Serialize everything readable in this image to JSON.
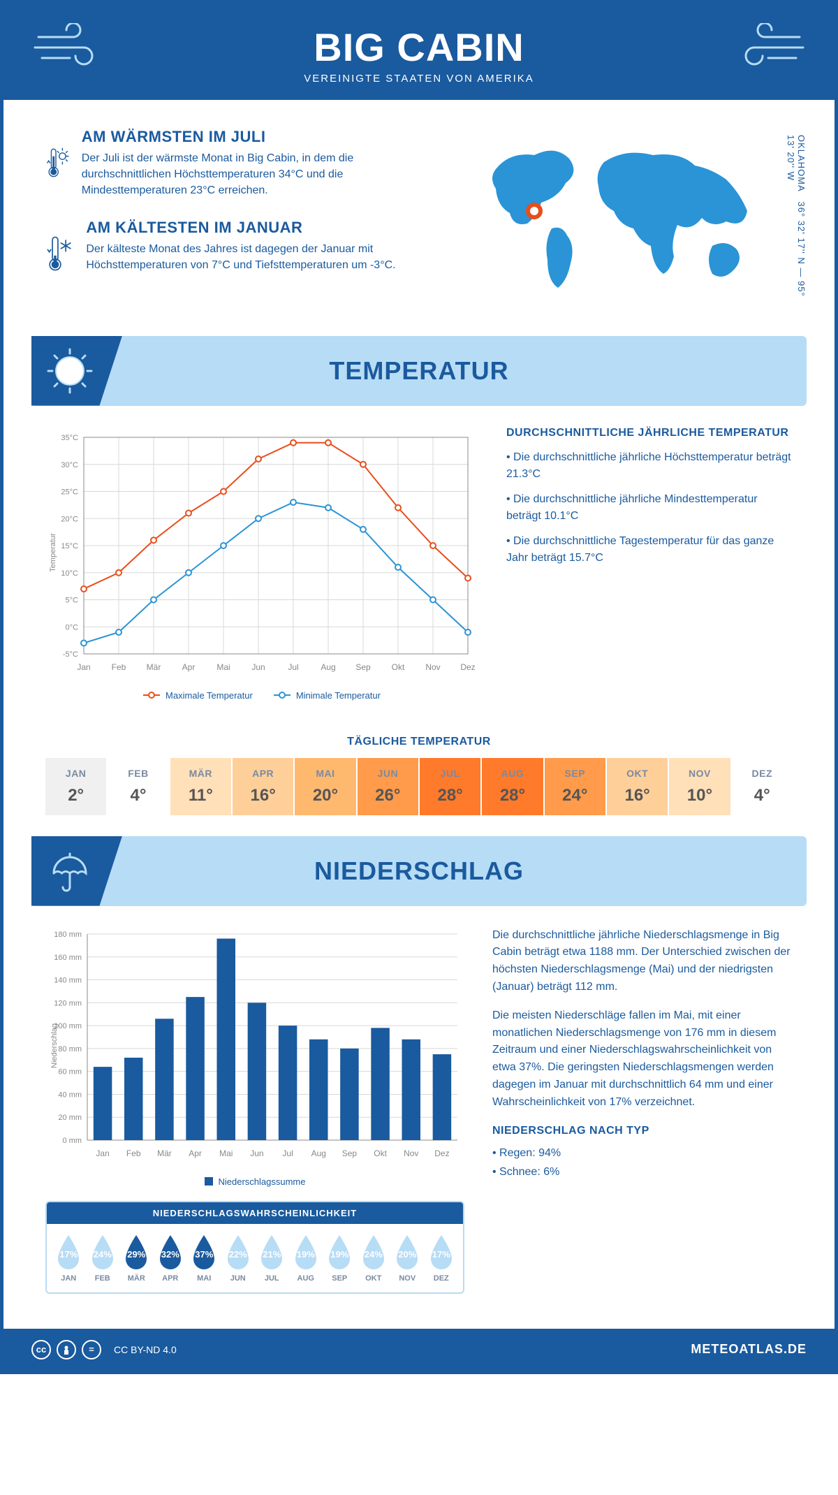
{
  "header": {
    "title": "BIG CABIN",
    "subtitle": "VEREINIGTE STAATEN VON AMERIKA"
  },
  "colors": {
    "primary": "#1a5a9e",
    "light_blue": "#b7dcf5",
    "accent_red": "#e84e1b",
    "grid": "#d8d8d8",
    "text_muted": "#7a8aa0"
  },
  "intro": {
    "warmest": {
      "title": "AM WÄRMSTEN IM JULI",
      "text": "Der Juli ist der wärmste Monat in Big Cabin, in dem die durchschnittlichen Höchsttemperaturen 34°C und die Mindesttemperaturen 23°C erreichen."
    },
    "coldest": {
      "title": "AM KÄLTESTEN IM JANUAR",
      "text": "Der kälteste Monat des Jahres ist dagegen der Januar mit Höchsttemperaturen von 7°C und Tiefsttemperaturen um -3°C."
    },
    "coords": "36° 32' 17'' N — 95° 13' 20'' W",
    "region": "OKLAHOMA"
  },
  "temperature": {
    "banner": "TEMPERATUR",
    "chart": {
      "type": "line",
      "months": [
        "Jan",
        "Feb",
        "Mär",
        "Apr",
        "Mai",
        "Jun",
        "Jul",
        "Aug",
        "Sep",
        "Okt",
        "Nov",
        "Dez"
      ],
      "max_series": {
        "label": "Maximale Temperatur",
        "color": "#e84e1b",
        "values": [
          7,
          10,
          16,
          21,
          25,
          31,
          34,
          34,
          30,
          22,
          15,
          9
        ]
      },
      "min_series": {
        "label": "Minimale Temperatur",
        "color": "#2a94d6",
        "values": [
          -3,
          -1,
          5,
          10,
          15,
          20,
          23,
          22,
          18,
          11,
          5,
          -1
        ]
      },
      "y_axis": {
        "min": -5,
        "max": 35,
        "step": 5,
        "label": "Temperatur",
        "suffix": "°C"
      },
      "grid_color": "#d8d8d8",
      "marker_style": "circle-hollow",
      "line_width": 2
    },
    "summary": {
      "title": "DURCHSCHNITTLICHE JÄHRLICHE TEMPERATUR",
      "points": [
        "• Die durchschnittliche jährliche Höchsttemperatur beträgt 21.3°C",
        "• Die durchschnittliche jährliche Mindesttemperatur beträgt 10.1°C",
        "• Die durchschnittliche Tagestemperatur für das ganze Jahr beträgt 15.7°C"
      ]
    },
    "daily": {
      "title": "TÄGLICHE TEMPERATUR",
      "months": [
        "JAN",
        "FEB",
        "MÄR",
        "APR",
        "MAI",
        "JUN",
        "JUL",
        "AUG",
        "SEP",
        "OKT",
        "NOV",
        "DEZ"
      ],
      "values": [
        "2°",
        "4°",
        "11°",
        "16°",
        "20°",
        "26°",
        "28°",
        "28°",
        "24°",
        "16°",
        "10°",
        "4°"
      ],
      "bg_colors": [
        "#f0f0f0",
        "#ffffff",
        "#ffe0b8",
        "#ffcf9a",
        "#ffb96f",
        "#ff9b4a",
        "#ff7a2b",
        "#ff7a2b",
        "#ff9b4a",
        "#ffcf9a",
        "#ffe0b8",
        "#ffffff"
      ]
    }
  },
  "precipitation": {
    "banner": "NIEDERSCHLAG",
    "chart": {
      "type": "bar",
      "months": [
        "Jan",
        "Feb",
        "Mär",
        "Apr",
        "Mai",
        "Jun",
        "Jul",
        "Aug",
        "Sep",
        "Okt",
        "Nov",
        "Dez"
      ],
      "values": [
        64,
        72,
        106,
        125,
        176,
        120,
        100,
        88,
        80,
        98,
        88,
        75
      ],
      "y_axis": {
        "min": 0,
        "max": 180,
        "step": 20,
        "label": "Niederschlag",
        "suffix": " mm"
      },
      "bar_color": "#1a5a9e",
      "grid_color": "#d8d8d8",
      "bar_width_ratio": 0.6,
      "legend_label": "Niederschlagssumme"
    },
    "text": {
      "p1": "Die durchschnittliche jährliche Niederschlagsmenge in Big Cabin beträgt etwa 1188 mm. Der Unterschied zwischen der höchsten Niederschlagsmenge (Mai) und der niedrigsten (Januar) beträgt 112 mm.",
      "p2": "Die meisten Niederschläge fallen im Mai, mit einer monatlichen Niederschlagsmenge von 176 mm in diesem Zeitraum und einer Niederschlagswahrscheinlichkeit von etwa 37%. Die geringsten Niederschlagsmengen werden dagegen im Januar mit durchschnittlich 64 mm und einer Wahrscheinlichkeit von 17% verzeichnet.",
      "type_title": "NIEDERSCHLAG NACH TYP",
      "type1": "• Regen: 94%",
      "type2": "• Schnee: 6%"
    },
    "probability": {
      "title": "NIEDERSCHLAGSWAHRSCHEINLICHKEIT",
      "months": [
        "JAN",
        "FEB",
        "MÄR",
        "APR",
        "MAI",
        "JUN",
        "JUL",
        "AUG",
        "SEP",
        "OKT",
        "NOV",
        "DEZ"
      ],
      "values": [
        "17%",
        "24%",
        "29%",
        "32%",
        "37%",
        "22%",
        "21%",
        "19%",
        "19%",
        "24%",
        "20%",
        "17%"
      ],
      "colors": [
        "#b7dcf5",
        "#b7dcf5",
        "#1a5a9e",
        "#1a5a9e",
        "#1a5a9e",
        "#b7dcf5",
        "#b7dcf5",
        "#b7dcf5",
        "#b7dcf5",
        "#b7dcf5",
        "#b7dcf5",
        "#b7dcf5"
      ],
      "text_colors": [
        "#fff",
        "#fff",
        "#fff",
        "#fff",
        "#fff",
        "#fff",
        "#fff",
        "#fff",
        "#fff",
        "#fff",
        "#fff",
        "#fff"
      ]
    }
  },
  "footer": {
    "license": "CC BY-ND 4.0",
    "brand": "METEOATLAS.DE"
  }
}
